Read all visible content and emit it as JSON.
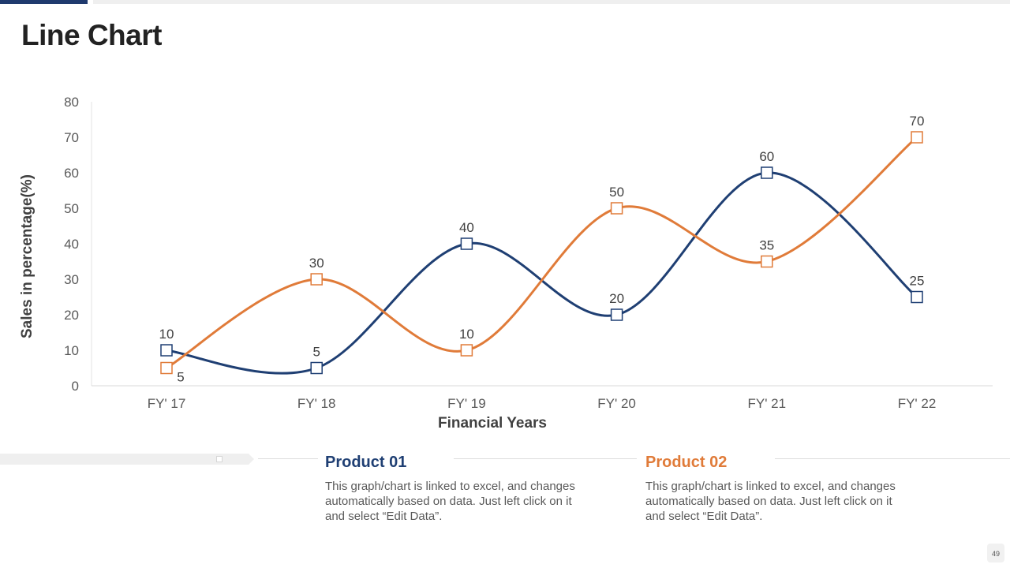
{
  "page": {
    "title": "Line Chart",
    "page_number": "49"
  },
  "colors": {
    "product01": "#1f3f73",
    "product02": "#e07b39",
    "accent_bar": "#1f3a6e"
  },
  "chart_data": {
    "type": "line",
    "title": "",
    "categories": [
      "FY' 17",
      "FY' 18",
      "FY' 19",
      "FY' 20",
      "FY' 21",
      "FY' 22"
    ],
    "series": [
      {
        "name": "Product 01",
        "values": [
          10,
          5,
          40,
          20,
          60,
          25
        ]
      },
      {
        "name": "Product 02",
        "values": [
          5,
          30,
          10,
          50,
          35,
          70
        ]
      }
    ],
    "xlabel": "Financial Years",
    "ylabel": "Sales in percentage(%)",
    "ylim": [
      0,
      80
    ],
    "yticks": [
      0,
      10,
      20,
      30,
      40,
      50,
      60,
      70,
      80
    ],
    "smooth": true,
    "markers": "square"
  },
  "products": [
    {
      "title": "Product 01",
      "description": "This graph/chart is linked to excel, and changes automatically based on data. Just left click on it and select “Edit Data”."
    },
    {
      "title": "Product 02",
      "description": "This graph/chart is linked to excel, and changes automatically based on data. Just left click on it and select “Edit Data”."
    }
  ]
}
